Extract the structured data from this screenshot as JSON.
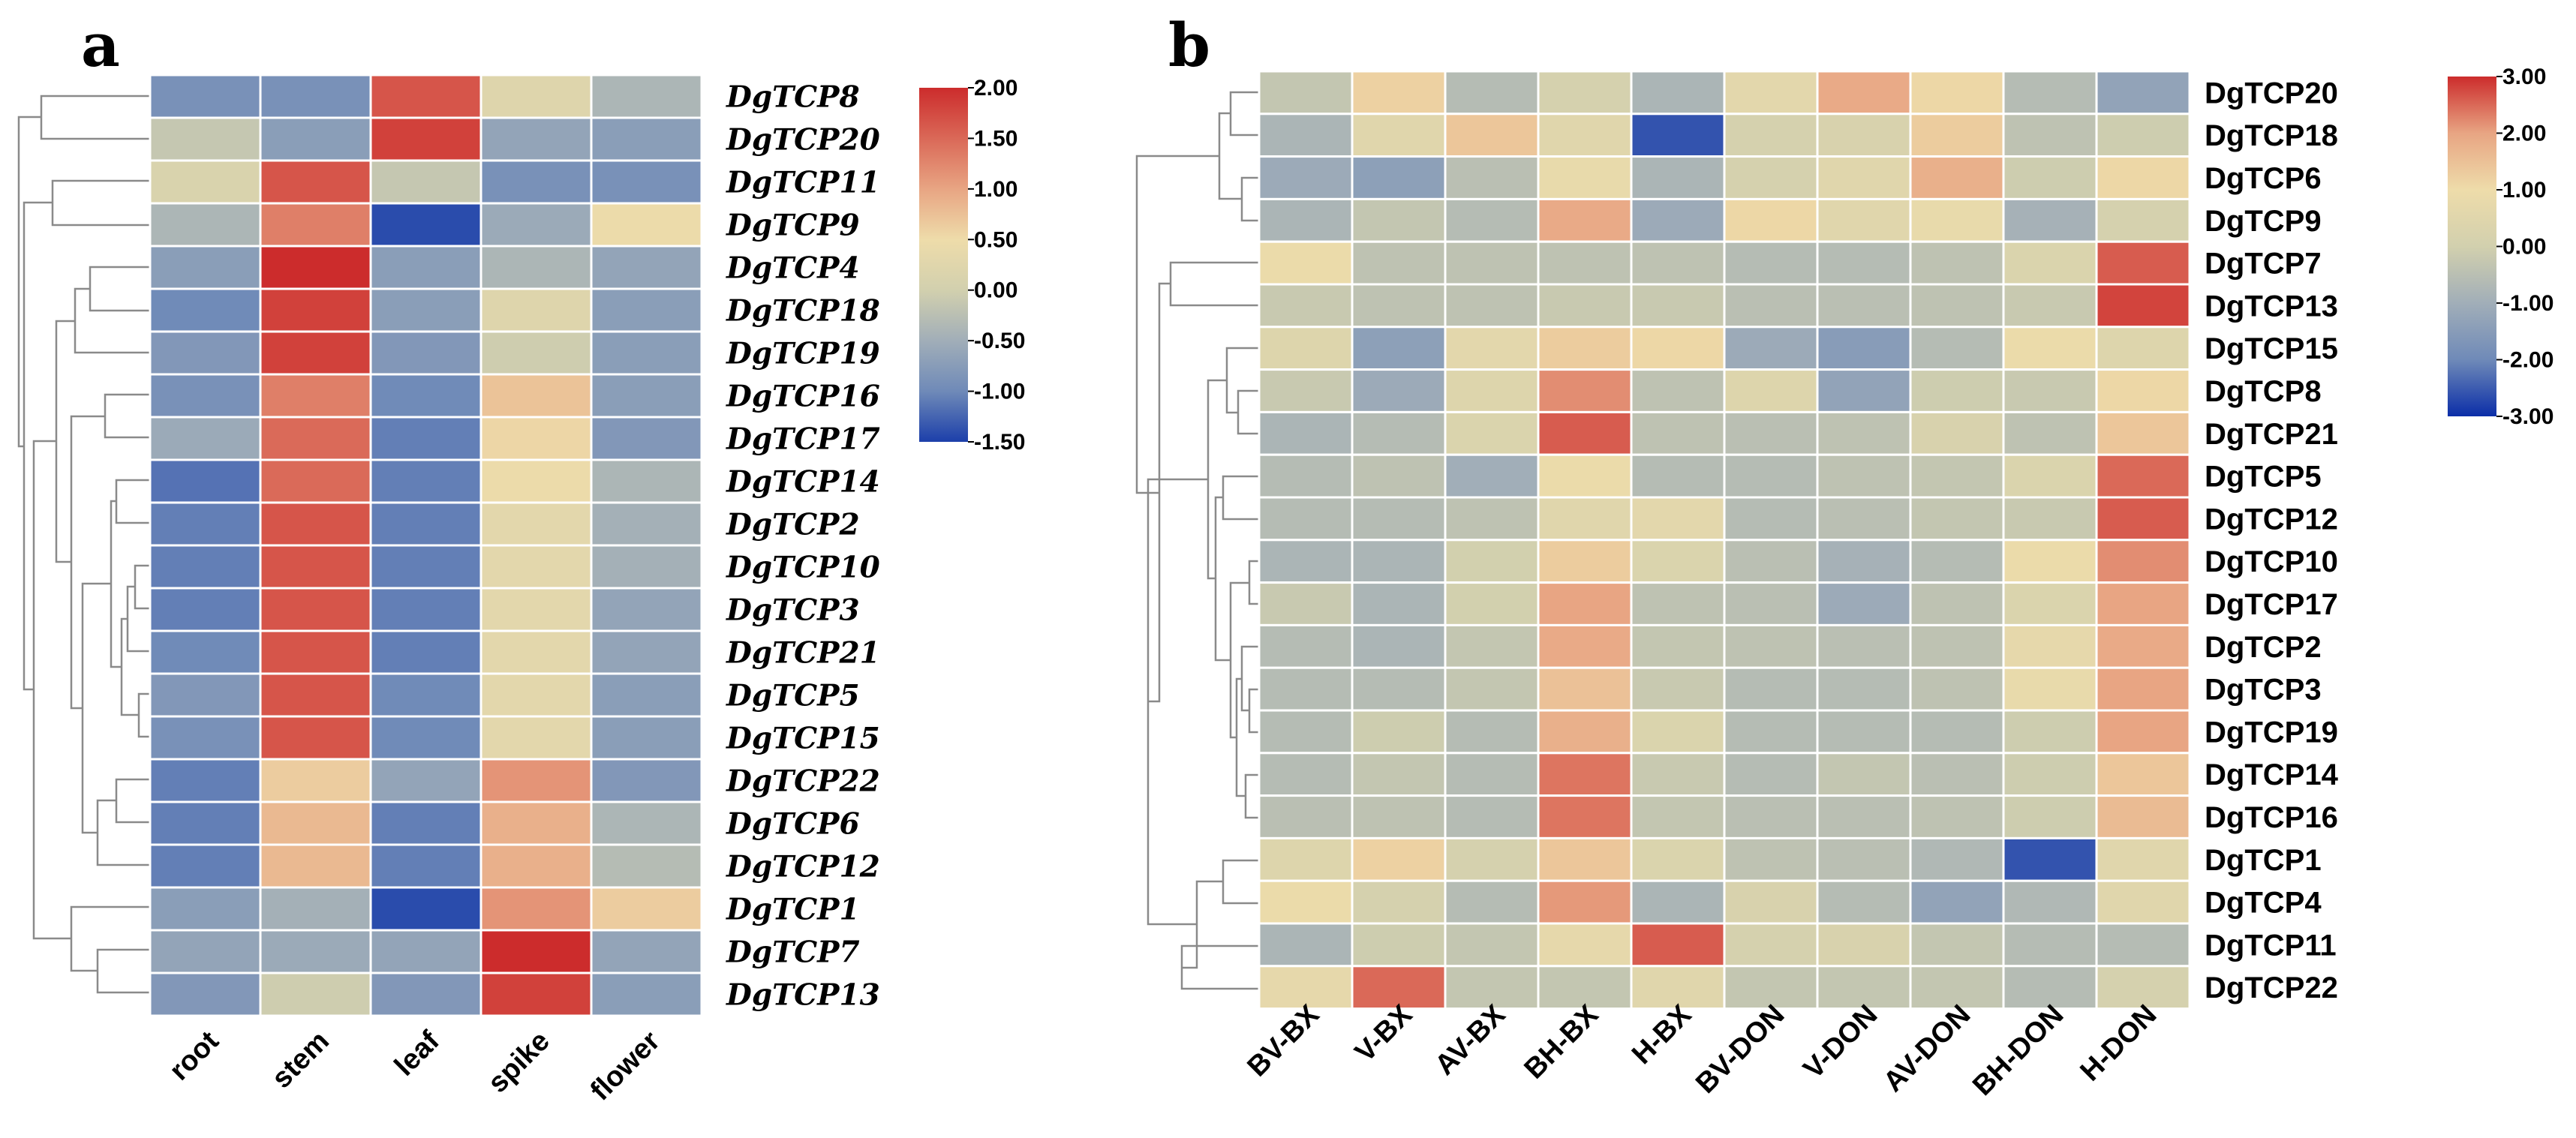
{
  "chart_data": [
    {
      "type": "heatmap",
      "panel_label": "a",
      "title": "",
      "columns": [
        "root",
        "stem",
        "leaf",
        "spike",
        "flower"
      ],
      "rows": [
        "DgTCP8",
        "DgTCP20",
        "DgTCP11",
        "DgTCP9",
        "DgTCP4",
        "DgTCP18",
        "DgTCP19",
        "DgTCP16",
        "DgTCP17",
        "DgTCP14",
        "DgTCP2",
        "DgTCP10",
        "DgTCP3",
        "DgTCP21",
        "DgTCP5",
        "DgTCP15",
        "DgTCP22",
        "DgTCP6",
        "DgTCP12",
        "DgTCP1",
        "DgTCP7",
        "DgTCP13"
      ],
      "values": [
        [
          -0.8,
          -0.8,
          1.8,
          0.5,
          -0.2
        ],
        [
          0.1,
          -0.6,
          1.9,
          -0.5,
          -0.6
        ],
        [
          0.4,
          1.8,
          0.1,
          -0.8,
          -0.8
        ],
        [
          -0.2,
          1.6,
          -1.4,
          -0.4,
          0.8
        ],
        [
          -0.6,
          2.0,
          -0.6,
          -0.2,
          -0.5
        ],
        [
          -0.9,
          1.9,
          -0.6,
          0.5,
          -0.6
        ],
        [
          -0.7,
          1.9,
          -0.7,
          0.2,
          -0.6
        ],
        [
          -0.8,
          1.6,
          -0.9,
          1.1,
          -0.6
        ],
        [
          -0.4,
          1.7,
          -1.0,
          0.9,
          -0.7
        ],
        [
          -1.1,
          1.7,
          -1.0,
          0.8,
          -0.2
        ],
        [
          -1.0,
          1.8,
          -1.0,
          0.6,
          -0.3
        ],
        [
          -1.0,
          1.8,
          -1.0,
          0.6,
          -0.3
        ],
        [
          -1.0,
          1.8,
          -1.0,
          0.6,
          -0.5
        ],
        [
          -0.9,
          1.8,
          -1.0,
          0.6,
          -0.5
        ],
        [
          -0.7,
          1.8,
          -0.9,
          0.6,
          -0.6
        ],
        [
          -0.8,
          1.8,
          -0.9,
          0.6,
          -0.6
        ],
        [
          -1.0,
          1.0,
          -0.5,
          1.5,
          -0.7
        ],
        [
          -1.0,
          1.2,
          -1.0,
          1.3,
          -0.2
        ],
        [
          -1.0,
          1.2,
          -1.0,
          1.3,
          -0.1
        ],
        [
          -0.6,
          -0.3,
          -1.4,
          1.5,
          1.0
        ],
        [
          -0.5,
          -0.4,
          -0.5,
          2.0,
          -0.5
        ],
        [
          -0.7,
          0.2,
          -0.7,
          1.9,
          -0.6
        ]
      ],
      "colorbar": {
        "min": -1.5,
        "max": 2.0,
        "ticks": [
          "2.00",
          "1.50",
          "1.00",
          "0.50",
          "0.00",
          "-0.50",
          "-1.00",
          "-1.50"
        ]
      },
      "colormap": [
        "#1c3faa",
        "#6f8ab8",
        "#a1aeb8",
        "#d2d0ae",
        "#eedcaa",
        "#e8a583",
        "#cc2c2c"
      ]
    },
    {
      "type": "heatmap",
      "panel_label": "b",
      "title": "",
      "columns": [
        "BV-BX",
        "V-BX",
        "AV-BX",
        "BH-BX",
        "H-BX",
        "BV-DON",
        "V-DON",
        "AV-DON",
        "BH-DON",
        "H-DON"
      ],
      "rows": [
        "DgTCP20",
        "DgTCP18",
        "DgTCP6",
        "DgTCP9",
        "DgTCP7",
        "DgTCP13",
        "DgTCP15",
        "DgTCP8",
        "DgTCP21",
        "DgTCP5",
        "DgTCP12",
        "DgTCP10",
        "DgTCP17",
        "DgTCP2",
        "DgTCP3",
        "DgTCP19",
        "DgTCP14",
        "DgTCP16",
        "DgTCP1",
        "DgTCP4",
        "DgTCP11",
        "DgTCP22"
      ],
      "values": [
        [
          -0.3,
          1.2,
          -0.6,
          0.1,
          -0.8,
          0.6,
          1.9,
          1.1,
          -0.6,
          -1.3
        ],
        [
          -0.8,
          0.5,
          1.4,
          0.5,
          -2.6,
          0.1,
          0.2,
          1.3,
          -0.4,
          -0.1
        ],
        [
          -1.1,
          -1.4,
          -0.5,
          0.8,
          -0.8,
          0.1,
          0.5,
          1.8,
          -0.1,
          1.1
        ],
        [
          -0.8,
          -0.3,
          -0.6,
          1.9,
          -1.1,
          1.1,
          0.5,
          0.8,
          -0.9,
          0.1
        ],
        [
          0.9,
          -0.4,
          -0.4,
          -0.4,
          -0.4,
          -0.6,
          -0.6,
          -0.4,
          0.3,
          2.6
        ],
        [
          -0.2,
          -0.4,
          -0.4,
          -0.2,
          -0.2,
          -0.5,
          -0.5,
          -0.4,
          -0.2,
          2.8
        ],
        [
          0.4,
          -1.4,
          0.6,
          1.3,
          1.1,
          -1.1,
          -1.5,
          -0.6,
          0.9,
          0.4
        ],
        [
          -0.2,
          -1.1,
          0.4,
          2.2,
          -0.4,
          0.4,
          -1.3,
          -0.1,
          -0.2,
          1.1
        ],
        [
          -0.8,
          -0.6,
          0.3,
          2.6,
          -0.4,
          -0.5,
          -0.4,
          0.2,
          -0.4,
          1.4
        ],
        [
          -0.6,
          -0.4,
          -1.0,
          0.9,
          -0.6,
          -0.6,
          -0.4,
          -0.3,
          0.3,
          2.5
        ],
        [
          -0.6,
          -0.6,
          -0.4,
          0.5,
          0.6,
          -0.6,
          -0.5,
          -0.3,
          -0.2,
          2.6
        ],
        [
          -0.8,
          -0.8,
          0.0,
          1.3,
          0.3,
          -0.5,
          -0.9,
          -0.6,
          0.9,
          2.2
        ],
        [
          -0.2,
          -0.8,
          0.0,
          2.0,
          -0.4,
          -0.5,
          -1.1,
          -0.4,
          0.3,
          2.0
        ],
        [
          -0.6,
          -0.8,
          -0.3,
          1.9,
          -0.3,
          -0.4,
          -0.5,
          -0.4,
          0.7,
          1.9
        ],
        [
          -0.6,
          -0.6,
          -0.3,
          1.5,
          -0.2,
          -0.6,
          -0.6,
          -0.4,
          0.8,
          2.0
        ],
        [
          -0.6,
          -0.1,
          -0.6,
          1.8,
          0.3,
          -0.6,
          -0.6,
          -0.6,
          -0.1,
          2.0
        ],
        [
          -0.6,
          -0.3,
          -0.6,
          2.4,
          -0.2,
          -0.6,
          -0.3,
          -0.5,
          -0.1,
          1.4
        ],
        [
          -0.5,
          -0.4,
          -0.6,
          2.4,
          -0.3,
          -0.5,
          -0.5,
          -0.4,
          -0.1,
          1.6
        ],
        [
          0.4,
          1.2,
          0.1,
          1.4,
          0.3,
          -0.4,
          -0.5,
          -0.7,
          -2.6,
          0.5
        ],
        [
          0.9,
          0.1,
          -0.6,
          2.1,
          -0.8,
          0.2,
          -0.6,
          -1.3,
          -0.7,
          0.5
        ],
        [
          -0.8,
          -0.1,
          -0.3,
          0.7,
          2.6,
          0.1,
          0.2,
          -0.3,
          -0.6,
          -0.6
        ],
        [
          0.7,
          2.5,
          -0.3,
          -0.3,
          0.5,
          -0.3,
          -0.3,
          -0.3,
          -0.6,
          0.1
        ]
      ],
      "colorbar": {
        "min": -3.0,
        "max": 3.0,
        "ticks": [
          "3.00",
          "2.00",
          "1.00",
          "0.00",
          "-1.00",
          "-2.00",
          "-3.00"
        ]
      },
      "colormap": [
        "#0b2ea8",
        "#6f8ab8",
        "#a1aeb8",
        "#d2d0ae",
        "#eedcaa",
        "#e8a583",
        "#cc2c2c"
      ]
    }
  ]
}
